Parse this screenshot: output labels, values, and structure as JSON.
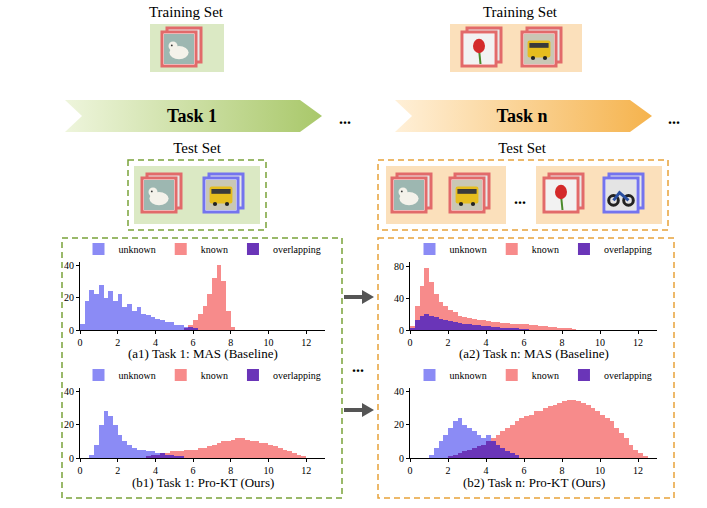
{
  "diagram": {
    "panels": [
      {
        "training_set": "Training Set",
        "task": "Task 1",
        "test_set": "Test Set"
      },
      {
        "training_set": "Training Set",
        "task": "Task n",
        "test_set": "Test Set"
      }
    ],
    "ellipsis": "..."
  },
  "chart_data": [
    {
      "type": "histogram",
      "title": "(a1) Task 1: MAS (Baseline)",
      "bins": [
        0,
        0.25,
        0.5,
        0.75,
        1,
        1.25,
        1.5,
        1.75,
        2,
        2.25,
        2.5,
        2.75,
        3,
        3.25,
        3.5,
        3.75,
        4,
        4.25,
        4.5,
        4.75,
        5,
        5.25,
        5.5,
        5.75,
        6,
        6.25,
        6.5,
        6.75,
        7,
        7.25,
        7.5,
        7.75,
        8,
        8.25,
        8.5,
        8.75,
        9,
        9.25,
        9.5,
        9.75,
        10,
        10.25,
        10.5,
        10.75,
        11,
        11.25,
        11.5,
        11.75,
        12,
        12.25,
        12.5
      ],
      "series": [
        {
          "name": "unknown",
          "color": "#7f7ff5",
          "values": [
            4,
            18,
            25,
            22,
            28,
            20,
            24,
            18,
            22,
            14,
            16,
            12,
            14,
            10,
            9,
            8,
            7,
            6,
            5,
            5,
            3,
            3,
            2,
            2,
            1,
            0,
            0,
            0,
            0,
            0,
            0,
            0,
            0,
            0,
            0,
            0,
            0,
            0,
            0,
            0,
            0,
            0,
            0,
            0,
            0,
            0,
            0,
            0,
            0,
            0
          ]
        },
        {
          "name": "known",
          "color": "#f77f7f",
          "values": [
            0,
            0,
            0,
            0,
            0,
            0,
            0,
            0,
            0,
            0,
            0,
            0,
            0,
            0,
            0,
            0,
            0,
            0,
            0,
            0,
            0,
            0,
            1,
            3,
            6,
            10,
            15,
            22,
            32,
            40,
            30,
            12,
            2,
            0,
            0,
            0,
            0,
            0,
            0,
            0,
            0,
            0,
            0,
            0,
            0,
            0,
            0,
            0,
            0,
            0
          ]
        },
        {
          "name": "overlapping",
          "color": "#6a35b8",
          "values": [
            0,
            0,
            0,
            0,
            0,
            0,
            0,
            0,
            0,
            0,
            0,
            0,
            0,
            0,
            0,
            0,
            0,
            0,
            0,
            0,
            0,
            0,
            1,
            2,
            1,
            0,
            0,
            0,
            0,
            0,
            0,
            0,
            0,
            0,
            0,
            0,
            0,
            0,
            0,
            0,
            0,
            0,
            0,
            0,
            0,
            0,
            0,
            0,
            0,
            0
          ]
        }
      ],
      "xlim": [
        0,
        13
      ],
      "xticks": [
        0,
        2,
        4,
        6,
        8,
        10,
        12
      ],
      "ylim": [
        0,
        42
      ],
      "yticks": [
        0,
        20,
        40
      ],
      "grid": false,
      "legend": "top"
    },
    {
      "type": "histogram",
      "title": "(a2) Task n: MAS (Baseline)",
      "bins": [
        0,
        0.25,
        0.5,
        0.75,
        1,
        1.25,
        1.5,
        1.75,
        2,
        2.25,
        2.5,
        2.75,
        3,
        3.25,
        3.5,
        3.75,
        4,
        4.25,
        4.5,
        4.75,
        5,
        5.25,
        5.5,
        5.75,
        6,
        6.25,
        6.5,
        6.75,
        7,
        7.25,
        7.5,
        7.75,
        8,
        8.25,
        8.5,
        8.75,
        9,
        9.25,
        9.5,
        9.75,
        10,
        10.25,
        10.5,
        10.75,
        11,
        11.25,
        11.5,
        11.75,
        12,
        12.25,
        12.5
      ],
      "series": [
        {
          "name": "unknown",
          "color": "#7f7ff5",
          "values": [
            3,
            12,
            18,
            20,
            18,
            16,
            14,
            12,
            11,
            10,
            9,
            8,
            7,
            6,
            6,
            5,
            5,
            4,
            4,
            3,
            3,
            2,
            2,
            1,
            1,
            0,
            0,
            0,
            0,
            0,
            0,
            0,
            0,
            0,
            0,
            0,
            0,
            0,
            0,
            0,
            0,
            0,
            0,
            0,
            0,
            0,
            0,
            0,
            0,
            0
          ]
        },
        {
          "name": "known",
          "color": "#f77f7f",
          "values": [
            5,
            30,
            55,
            78,
            60,
            45,
            35,
            30,
            25,
            22,
            18,
            16,
            15,
            14,
            12,
            12,
            11,
            10,
            10,
            9,
            9,
            8,
            8,
            7,
            7,
            6,
            6,
            5,
            5,
            4,
            4,
            3,
            3,
            2,
            1,
            0,
            0,
            0,
            0,
            0,
            0,
            0,
            0,
            0,
            0,
            0,
            0,
            0,
            0,
            0
          ]
        },
        {
          "name": "overlapping",
          "color": "#6a35b8",
          "values": [
            3,
            12,
            18,
            20,
            18,
            16,
            14,
            12,
            11,
            10,
            9,
            8,
            7,
            6,
            6,
            5,
            5,
            4,
            4,
            3,
            3,
            2,
            2,
            1,
            1,
            0,
            0,
            0,
            0,
            0,
            0,
            0,
            0,
            0,
            0,
            0,
            0,
            0,
            0,
            0,
            0,
            0,
            0,
            0,
            0,
            0,
            0,
            0,
            0,
            0
          ]
        }
      ],
      "xlim": [
        0,
        13
      ],
      "xticks": [
        0,
        2,
        4,
        6,
        8,
        10,
        12
      ],
      "ylim": [
        0,
        85
      ],
      "yticks": [
        0,
        40,
        80
      ],
      "grid": false,
      "legend": "top"
    },
    {
      "type": "histogram",
      "title": "(b1) Task 1: Pro-KT (Ours)",
      "bins": [
        0,
        0.25,
        0.5,
        0.75,
        1,
        1.25,
        1.5,
        1.75,
        2,
        2.25,
        2.5,
        2.75,
        3,
        3.25,
        3.5,
        3.75,
        4,
        4.25,
        4.5,
        4.75,
        5,
        5.25,
        5.5,
        5.75,
        6,
        6.25,
        6.5,
        6.75,
        7,
        7.25,
        7.5,
        7.75,
        8,
        8.25,
        8.5,
        8.75,
        9,
        9.25,
        9.5,
        9.75,
        10,
        10.25,
        10.5,
        10.75,
        11,
        11.25,
        11.5,
        11.75,
        12,
        12.25,
        12.5
      ],
      "series": [
        {
          "name": "unknown",
          "color": "#7f7ff5",
          "values": [
            0,
            0,
            2,
            8,
            20,
            28,
            25,
            20,
            14,
            10,
            8,
            6,
            5,
            5,
            4,
            4,
            3,
            3,
            2,
            2,
            1,
            1,
            0,
            0,
            0,
            0,
            0,
            0,
            0,
            0,
            0,
            0,
            0,
            0,
            0,
            0,
            0,
            0,
            0,
            0,
            0,
            0,
            0,
            0,
            0,
            0,
            0,
            0,
            0,
            0
          ]
        },
        {
          "name": "known",
          "color": "#f77f7f",
          "values": [
            0,
            0,
            0,
            0,
            0,
            0,
            0,
            0,
            0,
            0,
            0,
            0,
            0,
            0,
            1,
            2,
            2,
            3,
            3,
            4,
            4,
            4,
            5,
            5,
            5,
            6,
            6,
            7,
            8,
            9,
            10,
            10,
            11,
            12,
            12,
            11,
            10,
            10,
            9,
            9,
            8,
            7,
            6,
            5,
            4,
            3,
            2,
            1,
            0,
            0
          ]
        },
        {
          "name": "overlapping",
          "color": "#6a35b8",
          "values": [
            0,
            0,
            0,
            0,
            0,
            0,
            0,
            0,
            0,
            0,
            0,
            0,
            0,
            0,
            1,
            2,
            2,
            3,
            2,
            2,
            1,
            1,
            0,
            0,
            0,
            0,
            0,
            0,
            0,
            0,
            0,
            0,
            0,
            0,
            0,
            0,
            0,
            0,
            0,
            0,
            0,
            0,
            0,
            0,
            0,
            0,
            0,
            0,
            0,
            0
          ]
        }
      ],
      "xlim": [
        0,
        13
      ],
      "xticks": [
        0,
        2,
        4,
        6,
        8,
        10,
        12
      ],
      "ylim": [
        0,
        42
      ],
      "yticks": [
        0,
        20,
        40
      ],
      "grid": false,
      "legend": "top"
    },
    {
      "type": "histogram",
      "title": "(b2) Task n: Pro-KT (Ours)",
      "bins": [
        0,
        0.25,
        0.5,
        0.75,
        1,
        1.25,
        1.5,
        1.75,
        2,
        2.25,
        2.5,
        2.75,
        3,
        3.25,
        3.5,
        3.75,
        4,
        4.25,
        4.5,
        4.75,
        5,
        5.25,
        5.5,
        5.75,
        6,
        6.25,
        6.5,
        6.75,
        7,
        7.25,
        7.5,
        7.75,
        8,
        8.25,
        8.5,
        8.75,
        9,
        9.25,
        9.5,
        9.75,
        10,
        10.25,
        10.5,
        10.75,
        11,
        11.25,
        11.5,
        11.75,
        12,
        12.25,
        12.5
      ],
      "series": [
        {
          "name": "unknown",
          "color": "#7f7ff5",
          "values": [
            0,
            0,
            0,
            0,
            2,
            6,
            10,
            14,
            18,
            22,
            24,
            20,
            18,
            16,
            14,
            12,
            14,
            10,
            8,
            6,
            4,
            3,
            2,
            0,
            0,
            0,
            0,
            0,
            0,
            0,
            0,
            0,
            0,
            0,
            0,
            0,
            0,
            0,
            0,
            0,
            0,
            0,
            0,
            0,
            0,
            0,
            0,
            0,
            0,
            0
          ]
        },
        {
          "name": "known",
          "color": "#f77f7f",
          "values": [
            0,
            0,
            0,
            0,
            0,
            0,
            0,
            0,
            1,
            2,
            3,
            4,
            5,
            6,
            7,
            8,
            10,
            12,
            14,
            16,
            18,
            20,
            22,
            24,
            25,
            26,
            28,
            28,
            30,
            31,
            32,
            33,
            34,
            35,
            35,
            34,
            33,
            32,
            30,
            28,
            26,
            24,
            22,
            18,
            15,
            12,
            8,
            5,
            3,
            1
          ]
        },
        {
          "name": "overlapping",
          "color": "#6a35b8",
          "values": [
            0,
            0,
            0,
            0,
            0,
            0,
            0,
            0,
            1,
            2,
            3,
            4,
            5,
            6,
            7,
            8,
            10,
            10,
            8,
            6,
            4,
            3,
            2,
            0,
            0,
            0,
            0,
            0,
            0,
            0,
            0,
            0,
            0,
            0,
            0,
            0,
            0,
            0,
            0,
            0,
            0,
            0,
            0,
            0,
            0,
            0,
            0,
            0,
            0,
            0
          ]
        }
      ],
      "xlim": [
        0,
        13
      ],
      "xticks": [
        0,
        2,
        4,
        6,
        8,
        10,
        12
      ],
      "ylim": [
        0,
        42
      ],
      "yticks": [
        0,
        20,
        40
      ],
      "grid": false,
      "legend": "top"
    }
  ]
}
